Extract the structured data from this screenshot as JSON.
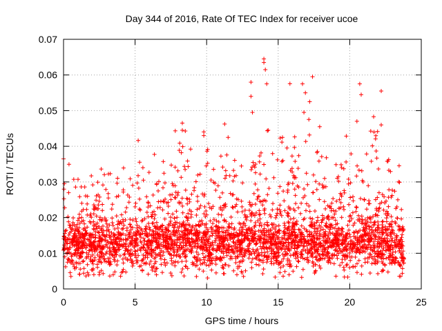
{
  "chart_data": {
    "type": "scatter",
    "title": "Day 344 of 2016, Rate Of TEC Index for receiver ucoe",
    "xlabel": "GPS time / hours",
    "ylabel": "ROTI / TECUs",
    "xlim": [
      0,
      25
    ],
    "ylim": [
      0,
      0.07
    ],
    "x_ticks": [
      "0",
      "5",
      "10",
      "15",
      "20",
      "25"
    ],
    "y_ticks": [
      "0",
      "0.01",
      "0.02",
      "0.03",
      "0.04",
      "0.05",
      "0.06",
      "0.07"
    ],
    "grid": true,
    "marker": "plus",
    "point_color": "#ff0000",
    "density_profile": {
      "x": [
        0,
        1,
        2,
        3,
        4,
        5,
        6,
        7,
        8,
        9,
        10,
        11,
        12,
        13,
        14,
        15,
        16,
        17,
        18,
        19,
        20,
        21,
        22,
        23,
        23.8
      ],
      "baseline": [
        0.011,
        0.012,
        0.012,
        0.012,
        0.012,
        0.012,
        0.012,
        0.012,
        0.013,
        0.013,
        0.012,
        0.012,
        0.012,
        0.013,
        0.013,
        0.012,
        0.013,
        0.013,
        0.012,
        0.012,
        0.012,
        0.013,
        0.013,
        0.012,
        0.011
      ],
      "upper": [
        0.03,
        0.032,
        0.034,
        0.035,
        0.035,
        0.034,
        0.036,
        0.036,
        0.04,
        0.04,
        0.036,
        0.038,
        0.035,
        0.04,
        0.045,
        0.04,
        0.045,
        0.048,
        0.042,
        0.036,
        0.04,
        0.042,
        0.045,
        0.035,
        0.033
      ]
    },
    "notable_points": [
      {
        "x": 0.0,
        "y": 0.0365
      },
      {
        "x": 8.3,
        "y": 0.0465
      },
      {
        "x": 8.3,
        "y": 0.0445
      },
      {
        "x": 9.8,
        "y": 0.043
      },
      {
        "x": 11.5,
        "y": 0.0425
      },
      {
        "x": 13.1,
        "y": 0.058
      },
      {
        "x": 13.1,
        "y": 0.054
      },
      {
        "x": 13.2,
        "y": 0.0495
      },
      {
        "x": 14.0,
        "y": 0.0645
      },
      {
        "x": 14.0,
        "y": 0.0635
      },
      {
        "x": 14.1,
        "y": 0.0615
      },
      {
        "x": 14.2,
        "y": 0.0575
      },
      {
        "x": 14.3,
        "y": 0.0445
      },
      {
        "x": 15.3,
        "y": 0.0425
      },
      {
        "x": 16.7,
        "y": 0.0575
      },
      {
        "x": 16.9,
        "y": 0.055
      },
      {
        "x": 17.2,
        "y": 0.0525
      },
      {
        "x": 17.4,
        "y": 0.0595
      },
      {
        "x": 16.8,
        "y": 0.0495
      },
      {
        "x": 17.9,
        "y": 0.0455
      },
      {
        "x": 20.7,
        "y": 0.0575
      },
      {
        "x": 20.8,
        "y": 0.0545
      },
      {
        "x": 20.5,
        "y": 0.047
      },
      {
        "x": 22.2,
        "y": 0.0555
      },
      {
        "x": 22.2,
        "y": 0.046
      },
      {
        "x": 21.7,
        "y": 0.044
      }
    ]
  }
}
